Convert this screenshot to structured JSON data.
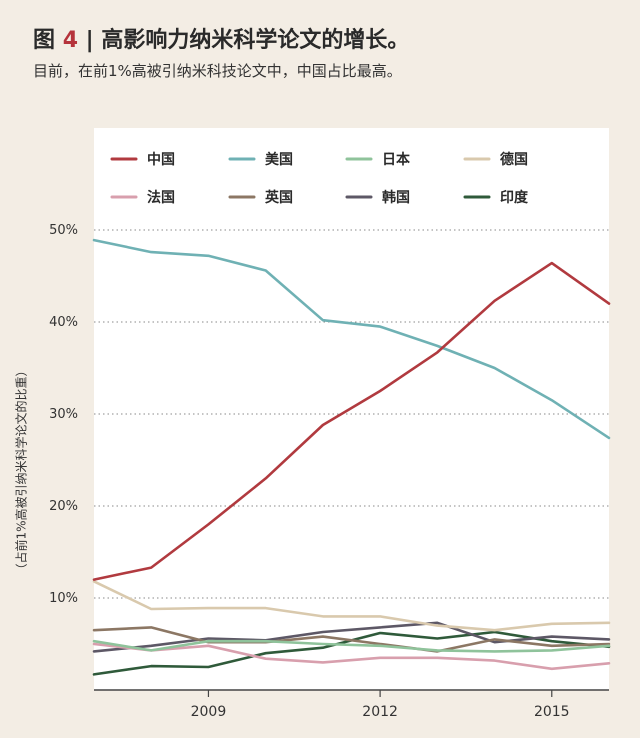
{
  "header": {
    "title_prefix": "图",
    "figure_number": "4",
    "title_sep": "|",
    "title": "高影响力纳米科学论文的增长。",
    "subtitle": "目前，在前1%高被引纳米科技论文中，中国占比最高。"
  },
  "chart_data": {
    "type": "line",
    "title": "",
    "xlabel": "",
    "ylabel": "（占前1%高被引纳米科学论文的比重）",
    "x": [
      2007,
      2008,
      2009,
      2010,
      2011,
      2012,
      2013,
      2014,
      2015,
      2016
    ],
    "xticks": [
      2009,
      2012,
      2015
    ],
    "xtick_labels": [
      "2009",
      "2012",
      "2015"
    ],
    "xlim": [
      2007,
      2016
    ],
    "ylim": [
      0,
      50
    ],
    "yticks": [
      10,
      20,
      30,
      40,
      50
    ],
    "ytick_labels": [
      "10%",
      "20%",
      "30%",
      "40%",
      "50%"
    ],
    "grid": "horizontal dotted",
    "legend_position": "top-left",
    "series": [
      {
        "name": "中国",
        "color": "#b13a3f",
        "values": [
          12.0,
          13.3,
          18.0,
          23.0,
          28.8,
          32.5,
          36.7,
          42.3,
          46.4,
          42.0
        ]
      },
      {
        "name": "美国",
        "color": "#6fb1b4",
        "values": [
          48.9,
          47.6,
          47.2,
          45.6,
          40.2,
          39.5,
          37.4,
          35.0,
          31.5,
          27.4
        ]
      },
      {
        "name": "日本",
        "color": "#8fc39b",
        "values": [
          5.3,
          4.3,
          5.3,
          5.3,
          5.0,
          4.8,
          4.3,
          4.2,
          4.3,
          4.8
        ]
      },
      {
        "name": "德国",
        "color": "#d9c9ad",
        "values": [
          11.8,
          8.8,
          8.9,
          8.9,
          8.0,
          8.0,
          7.0,
          6.5,
          7.2,
          7.3
        ]
      },
      {
        "name": "法国",
        "color": "#d89fad",
        "values": [
          5.0,
          4.3,
          4.8,
          3.4,
          3.0,
          3.5,
          3.5,
          3.2,
          2.3,
          2.9
        ]
      },
      {
        "name": "英国",
        "color": "#8c7764",
        "values": [
          6.5,
          6.8,
          5.2,
          5.2,
          5.8,
          5.0,
          4.2,
          5.5,
          4.8,
          5.0
        ]
      },
      {
        "name": "韩国",
        "color": "#5d5866",
        "values": [
          4.2,
          4.8,
          5.6,
          5.4,
          6.3,
          6.8,
          7.3,
          5.2,
          5.8,
          5.5
        ]
      },
      {
        "name": "印度",
        "color": "#2f5a3a",
        "values": [
          1.7,
          2.6,
          2.5,
          4.0,
          4.6,
          6.2,
          5.6,
          6.3,
          5.3,
          4.7
        ]
      }
    ]
  }
}
